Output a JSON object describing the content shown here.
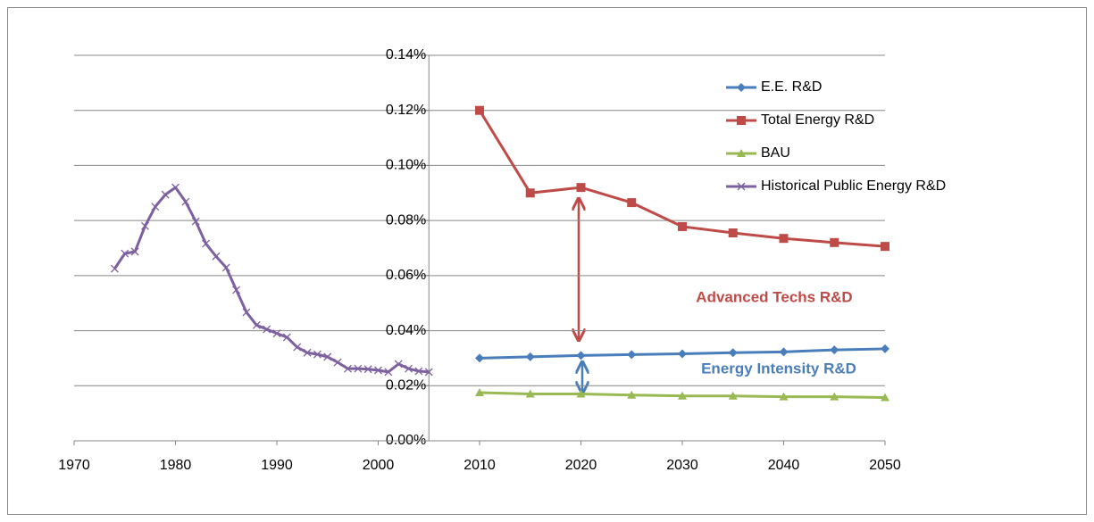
{
  "chart_data": {
    "type": "line",
    "annotations": [
      "Advanced Techs R&D",
      "Energy Intensity R&D"
    ],
    "xlim": [
      1970,
      2050
    ],
    "xticks": [
      1970,
      1980,
      1990,
      2000,
      2010,
      2020,
      2030,
      2040,
      2050
    ],
    "ylim": [
      0,
      0.14
    ],
    "yticks": [
      {
        "value": 0,
        "label": "0.00%"
      },
      {
        "value": 0.02,
        "label": "0.02%"
      },
      {
        "value": 0.04,
        "label": "0.04%"
      },
      {
        "value": 0.06,
        "label": "0.06%"
      },
      {
        "value": 0.08,
        "label": "0.08%"
      },
      {
        "value": 0.1,
        "label": "0.10%"
      },
      {
        "value": 0.12,
        "label": "0.12%"
      },
      {
        "value": 0.14,
        "label": "0.14%"
      }
    ],
    "y_axis_at": 2005,
    "grid": true,
    "legend": "top-right",
    "series": [
      {
        "name": "E.E. R&D",
        "color": "#4a7ebb",
        "marker": "diamond",
        "x": [
          2010,
          2015,
          2020,
          2025,
          2030,
          2035,
          2040,
          2045,
          2050
        ],
        "values": [
          0.03,
          0.0305,
          0.031,
          0.0313,
          0.0316,
          0.032,
          0.0323,
          0.033,
          0.0334
        ]
      },
      {
        "name": "Total Energy R&D",
        "color": "#be4b48",
        "marker": "square",
        "x": [
          2010,
          2015,
          2020,
          2025,
          2030,
          2035,
          2040,
          2045,
          2050
        ],
        "values": [
          0.12,
          0.09,
          0.092,
          0.0865,
          0.0778,
          0.0755,
          0.0735,
          0.072,
          0.0706
        ]
      },
      {
        "name": "BAU",
        "color": "#98b954",
        "marker": "triangle",
        "x": [
          2010,
          2015,
          2020,
          2025,
          2030,
          2035,
          2040,
          2045,
          2050
        ],
        "values": [
          0.0175,
          0.017,
          0.017,
          0.0166,
          0.0163,
          0.0163,
          0.016,
          0.016,
          0.0157
        ]
      },
      {
        "name": "Historical Public Energy R&D",
        "color": "#7d60a0",
        "marker": "x",
        "x": [
          1974,
          1975,
          1976,
          1977,
          1978,
          1979,
          1980,
          1981,
          1982,
          1983,
          1984,
          1985,
          1986,
          1987,
          1988,
          1989,
          1990,
          1991,
          1992,
          1993,
          1994,
          1995,
          1996,
          1997,
          1998,
          1999,
          2000,
          2001,
          2002,
          2003,
          2004,
          2005
        ],
        "values": [
          0.0625,
          0.068,
          0.0687,
          0.078,
          0.085,
          0.0894,
          0.092,
          0.0868,
          0.0797,
          0.0716,
          0.067,
          0.0629,
          0.0548,
          0.0467,
          0.042,
          0.0405,
          0.039,
          0.0376,
          0.034,
          0.032,
          0.0314,
          0.0305,
          0.0285,
          0.0262,
          0.0262,
          0.026,
          0.0256,
          0.025,
          0.0279,
          0.0262,
          0.0253,
          0.025
        ]
      }
    ]
  }
}
